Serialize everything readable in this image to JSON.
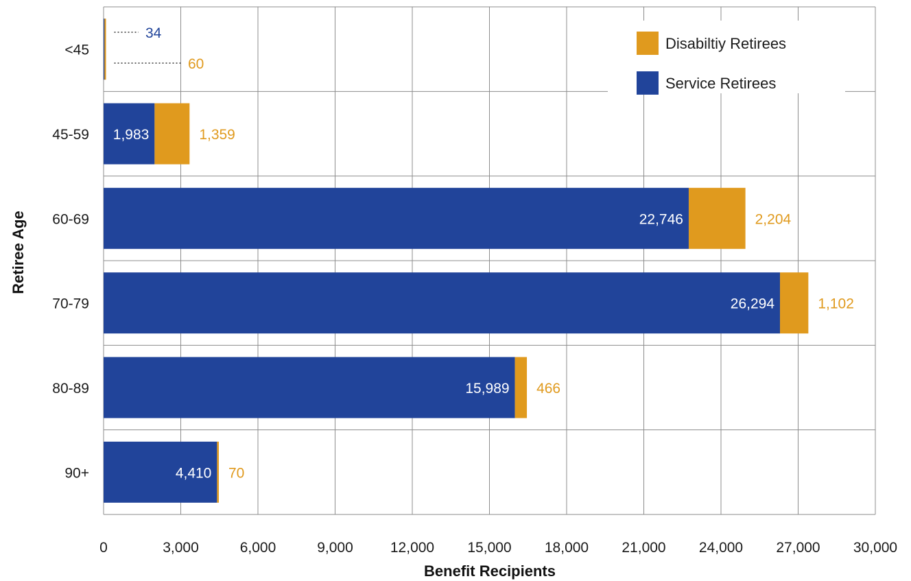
{
  "chart_data": {
    "type": "bar",
    "orientation": "horizontal",
    "stacked": true,
    "categories": [
      "<45",
      "45-59",
      "60-69",
      "70-79",
      "80-89",
      "90+"
    ],
    "series": [
      {
        "name": "Service Retirees",
        "values": [
          34,
          1983,
          22746,
          26294,
          15989,
          4410
        ],
        "color": "#21449A"
      },
      {
        "name": "Disabiltiy Retirees",
        "values": [
          60,
          1359,
          2204,
          1102,
          466,
          70
        ],
        "color": "#E09A1E"
      }
    ],
    "value_labels": {
      "service": [
        "34",
        "1,983",
        "22,746",
        "26,294",
        "15,989",
        "4,410"
      ],
      "disability": [
        "60",
        "1,359",
        "2,204",
        "1,102",
        "466",
        "70"
      ]
    },
    "xlabel": "Benefit Recipients",
    "ylabel": "Retiree Age",
    "xlim": [
      0,
      30000
    ],
    "xticks": [
      "0",
      "3,000",
      "6,000",
      "9,000",
      "12,000",
      "15,000",
      "18,000",
      "21,000",
      "24,000",
      "27,000",
      "30,000"
    ],
    "grid": true,
    "legend": {
      "placement": "top-right",
      "entries": [
        "Disabiltiy Retirees",
        "Service Retirees"
      ]
    }
  }
}
